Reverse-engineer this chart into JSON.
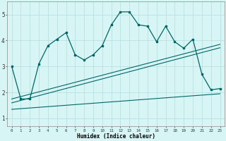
{
  "title": "",
  "xlabel": "Humidex (Indice chaleur)",
  "bg_color": "#d8f5f5",
  "line_color": "#006666",
  "grid_color": "#b8e0e0",
  "xlim": [
    -0.5,
    23.5
  ],
  "ylim": [
    0.7,
    5.5
  ],
  "xtick_labels": [
    "0",
    "1",
    "2",
    "3",
    "4",
    "5",
    "6",
    "7",
    "8",
    "9",
    "10",
    "11",
    "12",
    "13",
    "14",
    "15",
    "16",
    "17",
    "18",
    "19",
    "20",
    "21",
    "22",
    "23"
  ],
  "yticks": [
    1,
    2,
    3,
    4,
    5
  ],
  "main_x": [
    0,
    1,
    2,
    3,
    4,
    5,
    6,
    7,
    8,
    9,
    10,
    11,
    12,
    13,
    14,
    15,
    16,
    17,
    18,
    19,
    20,
    21,
    22,
    23
  ],
  "main_y": [
    3.0,
    1.75,
    1.75,
    3.1,
    3.8,
    4.05,
    4.3,
    3.45,
    3.25,
    3.45,
    3.8,
    4.6,
    5.1,
    5.1,
    4.6,
    4.55,
    3.95,
    4.55,
    3.95,
    3.7,
    4.05,
    2.7,
    2.1,
    2.15
  ],
  "line1_x": [
    0,
    23
  ],
  "line1_y": [
    1.75,
    3.85
  ],
  "line2_x": [
    0,
    23
  ],
  "line2_y": [
    1.6,
    3.72
  ],
  "line3_x": [
    0,
    23
  ],
  "line3_y": [
    1.35,
    1.95
  ]
}
